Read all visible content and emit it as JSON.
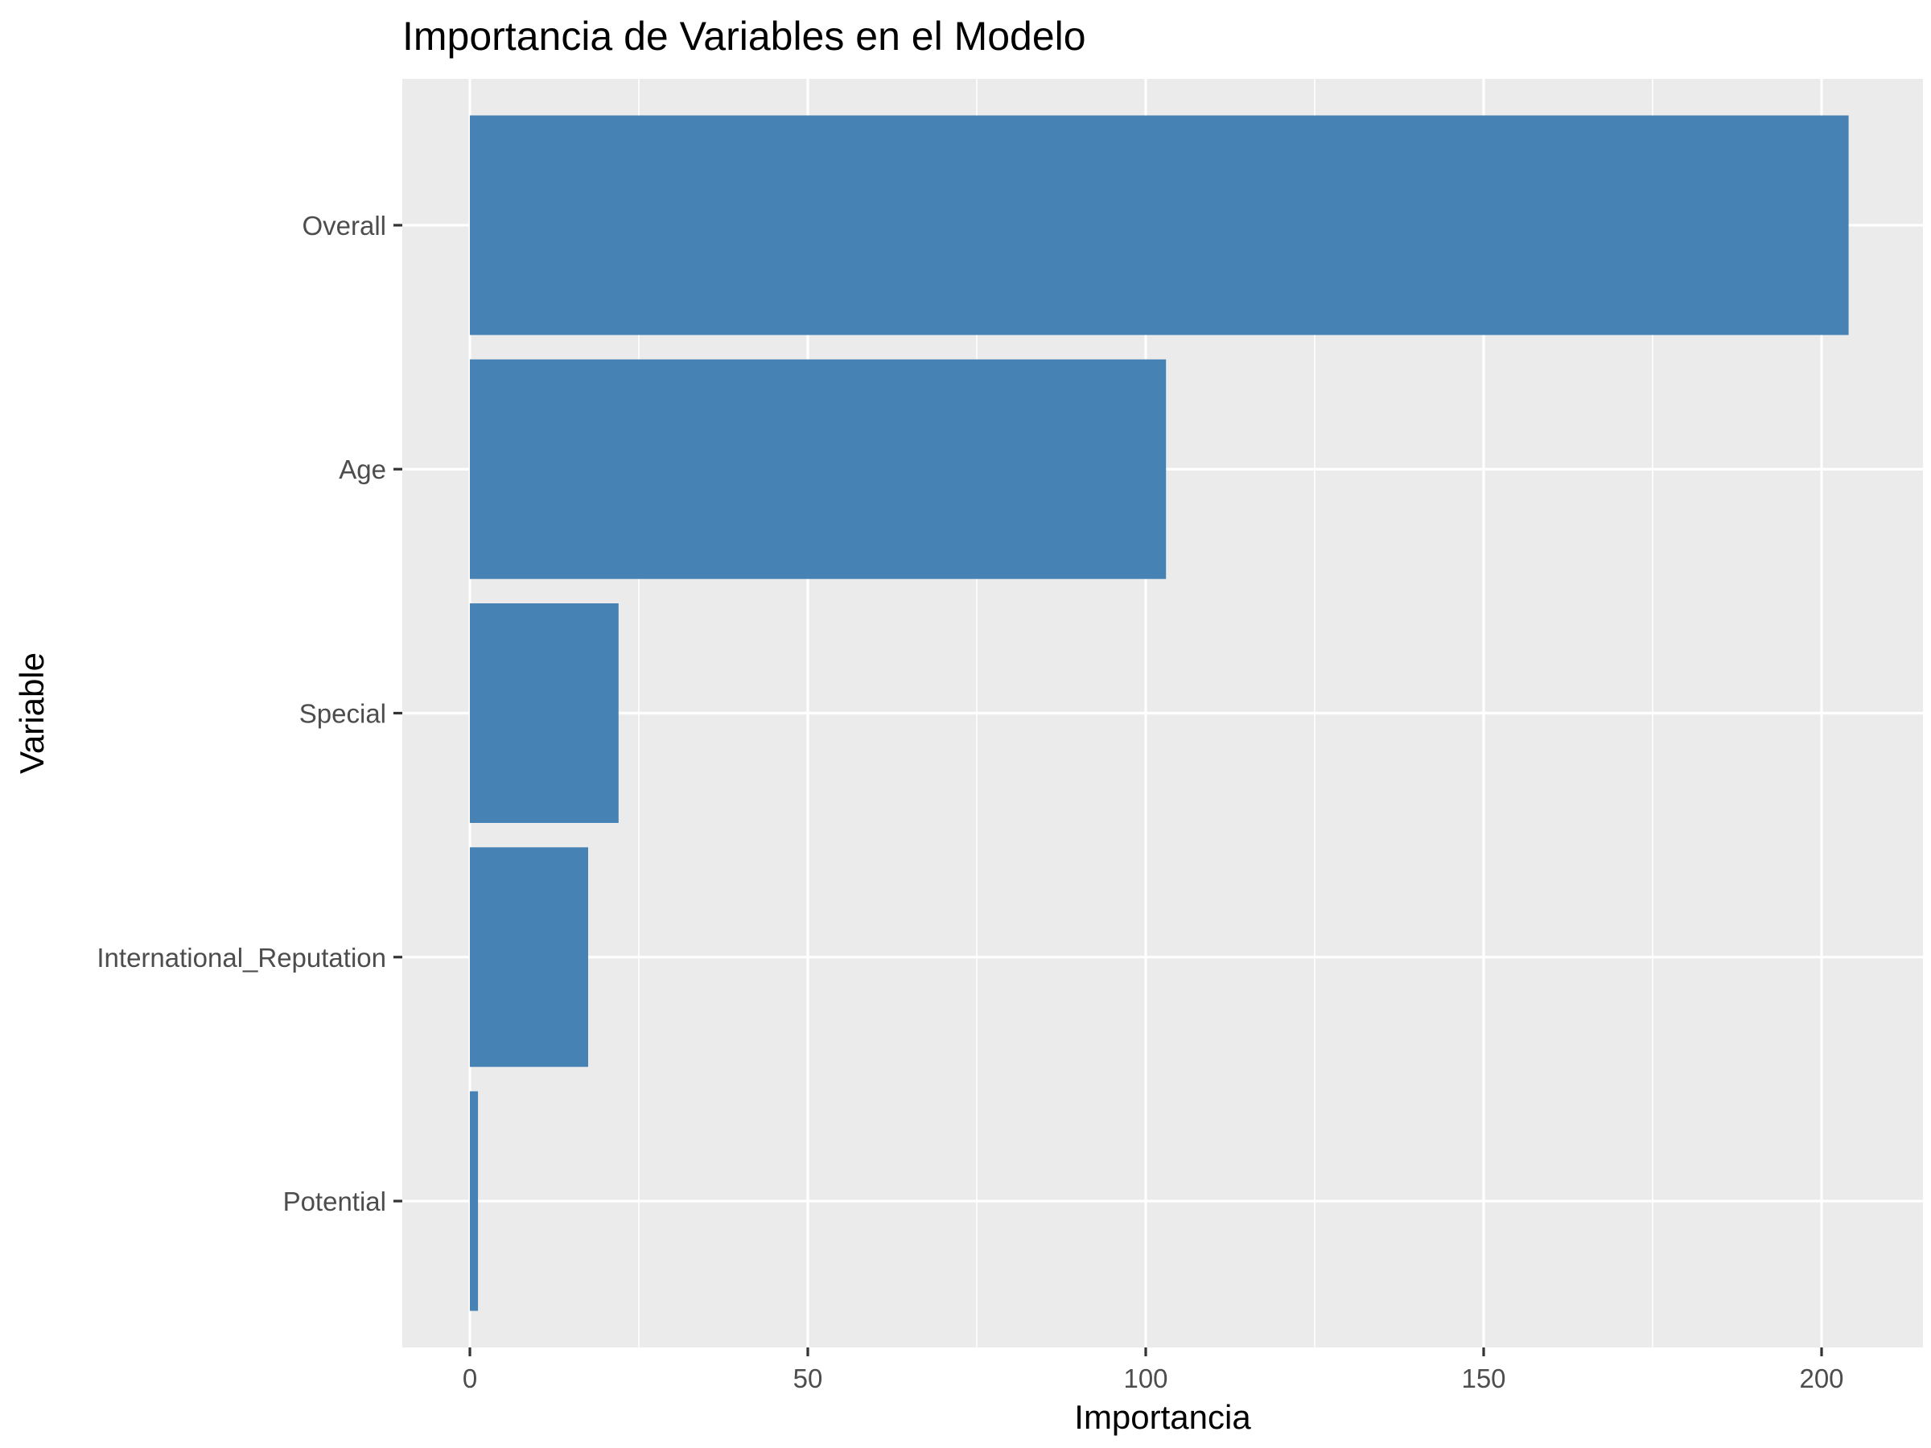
{
  "chart_data": {
    "type": "bar",
    "orientation": "horizontal",
    "title": "Importancia de Variables en el Modelo",
    "xlabel": "Importancia",
    "ylabel": "Variable",
    "categories": [
      "Overall",
      "Age",
      "Special",
      "International_Reputation",
      "Potential"
    ],
    "values": [
      204,
      103,
      22,
      17.5,
      1.2
    ],
    "xlim": [
      -10,
      215
    ],
    "xticks": [
      0,
      50,
      100,
      150,
      200
    ],
    "xtick_labels": [
      "0",
      "50",
      "100",
      "150",
      "200"
    ],
    "bar_color": "#4682B4",
    "panel_background": "#EBEBEB",
    "grid_color": "#FFFFFF",
    "grid": true,
    "legend": "none"
  }
}
